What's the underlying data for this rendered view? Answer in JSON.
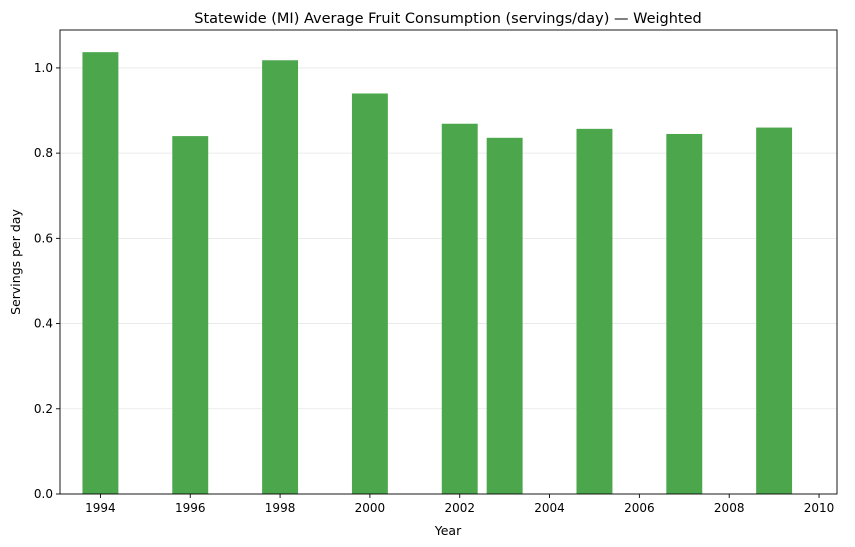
{
  "chart_data": {
    "type": "bar",
    "title": "Statewide (MI) Average Fruit Consumption (servings/day) — Weighted",
    "xlabel": "Year",
    "ylabel": "Servings per day",
    "x": [
      1994,
      1996,
      1998,
      2000,
      2002,
      2003,
      2005,
      2007,
      2009
    ],
    "values": [
      1.037,
      0.84,
      1.018,
      0.94,
      0.869,
      0.836,
      0.857,
      0.845,
      0.86
    ],
    "bar_width_years": 0.8,
    "bar_color": "#4ca64c",
    "xlim": [
      1993.1,
      2010.4
    ],
    "ylim": [
      0,
      1.089
    ],
    "xticks": [
      1994,
      1996,
      1998,
      2000,
      2002,
      2004,
      2006,
      2008,
      2010
    ],
    "yticks": [
      0.0,
      0.2,
      0.4,
      0.6,
      0.8,
      1.0
    ],
    "ytick_labels": [
      "0.0",
      "0.2",
      "0.4",
      "0.6",
      "0.8",
      "1.0"
    ],
    "grid": "y-axis only",
    "legend": "none"
  }
}
